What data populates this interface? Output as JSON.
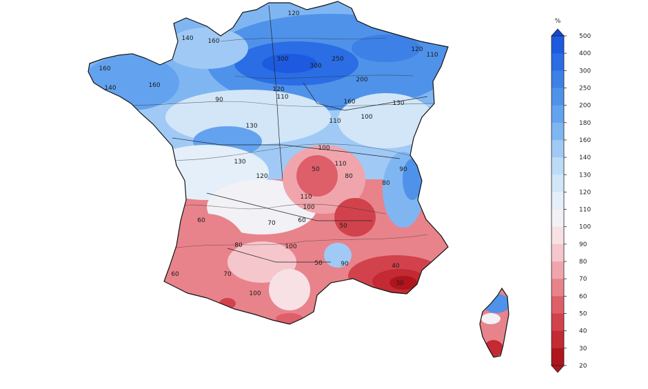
{
  "legend": {
    "unit": "%",
    "classes": [
      {
        "label": "500",
        "color": "#1446d6"
      },
      {
        "label": "400",
        "color": "#1e5ae0"
      },
      {
        "label": "300",
        "color": "#2a6de4"
      },
      {
        "label": "250",
        "color": "#3d80e6"
      },
      {
        "label": "200",
        "color": "#4f92ea"
      },
      {
        "label": "180",
        "color": "#63a2ee"
      },
      {
        "label": "160",
        "color": "#7fb6f2"
      },
      {
        "label": "140",
        "color": "#a0caf5"
      },
      {
        "label": "130",
        "color": "#bcdbf7"
      },
      {
        "label": "120",
        "color": "#d2e6f8"
      },
      {
        "label": "110",
        "color": "#e4eff9"
      },
      {
        "label": "100",
        "color": "#f1f1f6"
      },
      {
        "label": "90",
        "color": "#f7e1e4"
      },
      {
        "label": "80",
        "color": "#f5c7cc"
      },
      {
        "label": "70",
        "color": "#f0a5ac"
      },
      {
        "label": "60",
        "color": "#e8838b"
      },
      {
        "label": "50",
        "color": "#de5f69"
      },
      {
        "label": "40",
        "color": "#d2424c"
      },
      {
        "label": "30",
        "color": "#c32a33"
      },
      {
        "label": "20",
        "color": "#b0141d"
      }
    ]
  },
  "contour_labels": [
    {
      "text": "120"
    },
    {
      "text": "140"
    },
    {
      "text": "160"
    },
    {
      "text": "300"
    },
    {
      "text": "250"
    },
    {
      "text": "300"
    },
    {
      "text": "200"
    },
    {
      "text": "120"
    },
    {
      "text": "110"
    },
    {
      "text": "160"
    },
    {
      "text": "120"
    },
    {
      "text": "110"
    },
    {
      "text": "90"
    },
    {
      "text": "160"
    },
    {
      "text": "130"
    },
    {
      "text": "110"
    },
    {
      "text": "100"
    },
    {
      "text": "130"
    },
    {
      "text": "100"
    },
    {
      "text": "130"
    },
    {
      "text": "110"
    },
    {
      "text": "120"
    },
    {
      "text": "80"
    },
    {
      "text": "90"
    },
    {
      "text": "80"
    },
    {
      "text": "50"
    },
    {
      "text": "60"
    },
    {
      "text": "70"
    },
    {
      "text": "60"
    },
    {
      "text": "50"
    },
    {
      "text": "80"
    },
    {
      "text": "100"
    },
    {
      "text": "90"
    },
    {
      "text": "70"
    },
    {
      "text": "40"
    },
    {
      "text": "30"
    },
    {
      "text": "60"
    },
    {
      "text": "50"
    },
    {
      "text": "100"
    },
    {
      "text": "140"
    },
    {
      "text": "160"
    },
    {
      "text": "110"
    },
    {
      "text": "100"
    }
  ]
}
